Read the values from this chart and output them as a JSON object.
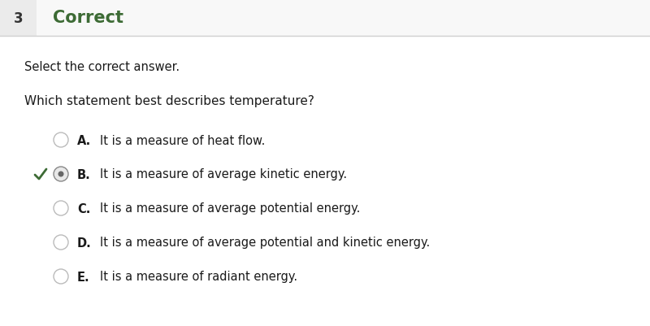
{
  "background_color": "#ffffff",
  "header_number": "3",
  "header_number_bg": "#ebebeb",
  "header_label": "Correct",
  "header_label_color": "#3d6b35",
  "header_separator_color": "#d0d0d0",
  "instruction": "Select the correct answer.",
  "question": "Which statement best describes temperature?",
  "options": [
    {
      "letter": "A.",
      "text": "It is a measure of heat flow.",
      "selected": false,
      "correct": false
    },
    {
      "letter": "B.",
      "text": "It is a measure of average kinetic energy.",
      "selected": true,
      "correct": true
    },
    {
      "letter": "C.",
      "text": "It is a measure of average potential energy.",
      "selected": false,
      "correct": false
    },
    {
      "letter": "D.",
      "text": "It is a measure of average potential and kinetic energy.",
      "selected": false,
      "correct": false
    },
    {
      "letter": "E.",
      "text": "It is a measure of radiant energy.",
      "selected": false,
      "correct": false
    }
  ],
  "checkmark_color": "#3d6b35",
  "text_color": "#1a1a1a",
  "letter_color": "#1a1a1a",
  "font_size_header_num": 12,
  "font_size_header_label": 15,
  "font_size_instruction": 10.5,
  "font_size_question": 11,
  "font_size_options": 10.5,
  "fig_width": 8.0,
  "fig_height": 4.02,
  "dpi": 100
}
